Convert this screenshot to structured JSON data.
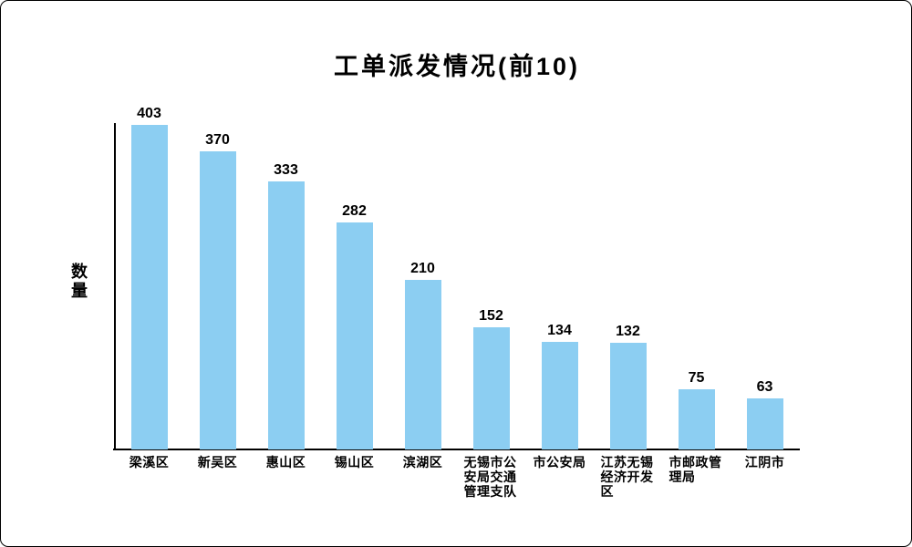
{
  "chart_data": {
    "type": "bar",
    "title": "工单派发情况(前10)",
    "xlabel": "",
    "ylabel": "数量",
    "categories": [
      "梁溪区",
      "新吴区",
      "惠山区",
      "锡山区",
      "滨湖区",
      "无锡市公安局交通管理支队",
      "市公安局",
      "江苏无锡经济开发区",
      "市邮政管理局",
      "江阴市"
    ],
    "values": [
      403,
      370,
      333,
      282,
      210,
      152,
      134,
      132,
      75,
      63
    ],
    "ylim": [
      0,
      403
    ],
    "grid": false,
    "legend": "none",
    "bar_color": "#8CCEF2",
    "axis_color": "#000000",
    "text_color": "#000000",
    "background_color": "#ffffff"
  }
}
